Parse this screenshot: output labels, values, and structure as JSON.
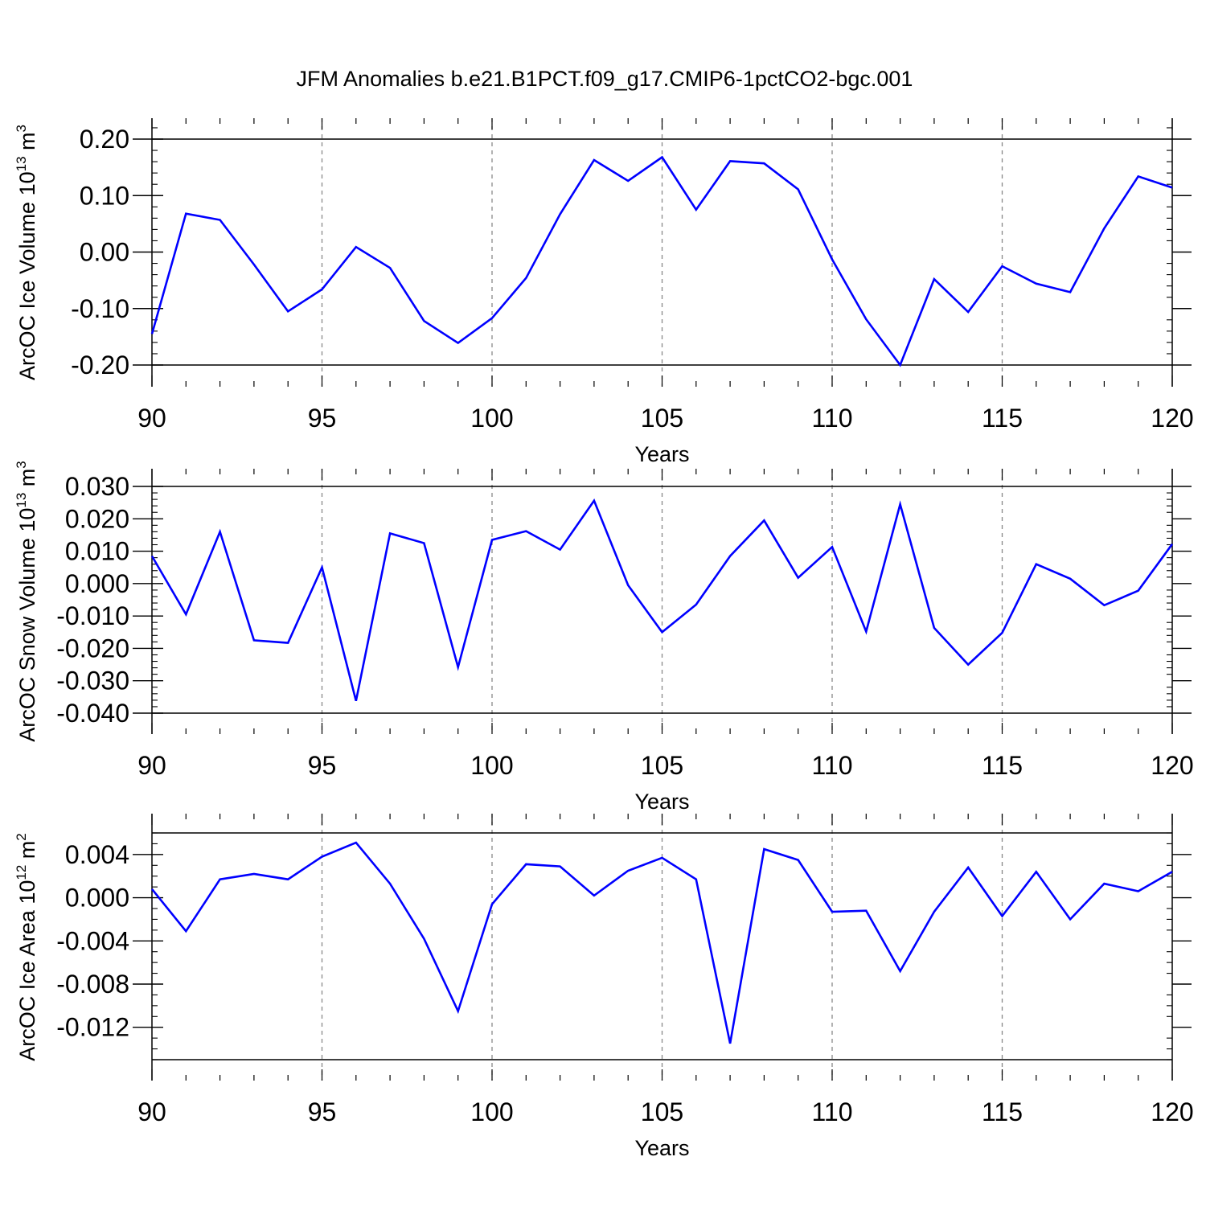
{
  "title": "JFM Anomalies b.e21.B1PCT.f09_g17.CMIP6-1pctCO2-bgc.001",
  "colors": {
    "line": "#0000ff",
    "axis": "#000000",
    "grid": "#888888"
  },
  "chart_data": [
    {
      "type": "line",
      "ylabel_main": "ArcOC Ice Volume 10",
      "ylabel_exp": "13",
      "ylabel_unit": " m",
      "ylabel_unit_exp": "3",
      "xlabel": "Years",
      "xlim": [
        90,
        120
      ],
      "ylim": [
        -0.2,
        0.2
      ],
      "top_extra": 0.036,
      "bottom_extra": 0,
      "yticks": [
        -0.2,
        -0.1,
        0.0,
        0.1,
        0.2
      ],
      "yticklabels": [
        "-0.20",
        "-0.10",
        "0.00",
        "0.10",
        "0.20"
      ],
      "yminor_step": 0.02,
      "xticks": [
        90,
        95,
        100,
        105,
        110,
        115,
        120
      ],
      "xticklabels": [
        "90",
        "95",
        "100",
        "105",
        "110",
        "115",
        "120"
      ],
      "x": [
        90,
        91,
        92,
        93,
        94,
        95,
        96,
        97,
        98,
        99,
        100,
        101,
        102,
        103,
        104,
        105,
        106,
        107,
        108,
        109,
        110,
        111,
        112,
        113,
        114,
        115,
        116,
        117,
        118,
        119,
        120
      ],
      "values": [
        -0.145,
        0.068,
        0.057,
        -0.022,
        -0.105,
        -0.066,
        0.009,
        -0.028,
        -0.122,
        -0.161,
        -0.117,
        -0.046,
        0.067,
        0.163,
        0.126,
        0.168,
        0.075,
        0.161,
        0.157,
        0.111,
        -0.013,
        -0.119,
        -0.2,
        -0.048,
        -0.106,
        -0.025,
        -0.056,
        -0.071,
        0.042,
        0.134,
        0.114
      ]
    },
    {
      "type": "line",
      "ylabel_main": "ArcOC Snow Volume 10",
      "ylabel_exp": "13",
      "ylabel_unit": " m",
      "ylabel_unit_exp": "3",
      "xlabel": "Years",
      "xlim": [
        90,
        120
      ],
      "ylim": [
        -0.04,
        0.03
      ],
      "top_extra": 0,
      "bottom_extra": 0,
      "yticks": [
        -0.04,
        -0.03,
        -0.02,
        -0.01,
        0.0,
        0.01,
        0.02,
        0.03
      ],
      "yticklabels": [
        "-0.040",
        "-0.030",
        "-0.020",
        "-0.010",
        "0.000",
        "0.010",
        "0.020",
        "0.030"
      ],
      "yminor_step": 0.002,
      "xticks": [
        90,
        95,
        100,
        105,
        110,
        115,
        120
      ],
      "xticklabels": [
        "90",
        "95",
        "100",
        "105",
        "110",
        "115",
        "120"
      ],
      "x": [
        90,
        91,
        92,
        93,
        94,
        95,
        96,
        97,
        98,
        99,
        100,
        101,
        102,
        103,
        104,
        105,
        106,
        107,
        108,
        109,
        110,
        111,
        112,
        113,
        114,
        115,
        116,
        117,
        118,
        119,
        120
      ],
      "values": [
        0.0085,
        -0.0095,
        0.016,
        -0.0175,
        -0.0183,
        0.005,
        -0.0362,
        0.0155,
        0.0125,
        -0.0258,
        0.0135,
        0.0162,
        0.0105,
        0.0256,
        -0.0005,
        -0.015,
        -0.0065,
        0.0085,
        0.0195,
        0.0018,
        0.0113,
        -0.0148,
        0.0245,
        -0.0137,
        -0.025,
        -0.0152,
        0.006,
        0.0015,
        -0.0067,
        -0.0022,
        0.0122
      ]
    },
    {
      "type": "line",
      "ylabel_main": "ArcOC Ice Area 10",
      "ylabel_exp": "12",
      "ylabel_unit": " m",
      "ylabel_unit_exp": "2",
      "xlabel": "Years",
      "xlim": [
        90,
        120
      ],
      "ylim": [
        -0.015,
        0.006
      ],
      "top_extra": 0,
      "bottom_extra": 0,
      "yticks": [
        -0.012,
        -0.008,
        -0.004,
        0.0,
        0.004
      ],
      "yticklabels": [
        "-0.012",
        "-0.008",
        "-0.004",
        "0.000",
        "0.004"
      ],
      "yminor_step": 0.001,
      "xticks": [
        90,
        95,
        100,
        105,
        110,
        115,
        120
      ],
      "xticklabels": [
        "90",
        "95",
        "100",
        "105",
        "110",
        "115",
        "120"
      ],
      "x": [
        90,
        91,
        92,
        93,
        94,
        95,
        96,
        97,
        98,
        99,
        100,
        101,
        102,
        103,
        104,
        105,
        106,
        107,
        108,
        109,
        110,
        111,
        112,
        113,
        114,
        115,
        116,
        117,
        118,
        119,
        120
      ],
      "values": [
        0.0008,
        -0.0031,
        0.0017,
        0.0022,
        0.0017,
        0.0038,
        0.0051,
        0.0013,
        -0.0038,
        -0.0105,
        -0.0006,
        0.0031,
        0.0029,
        0.0002,
        0.0025,
        0.0037,
        0.0017,
        -0.0135,
        0.0045,
        0.0035,
        -0.0013,
        -0.0012,
        -0.0068,
        -0.0013,
        0.0028,
        -0.0017,
        0.0024,
        -0.002,
        0.0013,
        0.0006,
        0.0024
      ]
    }
  ]
}
